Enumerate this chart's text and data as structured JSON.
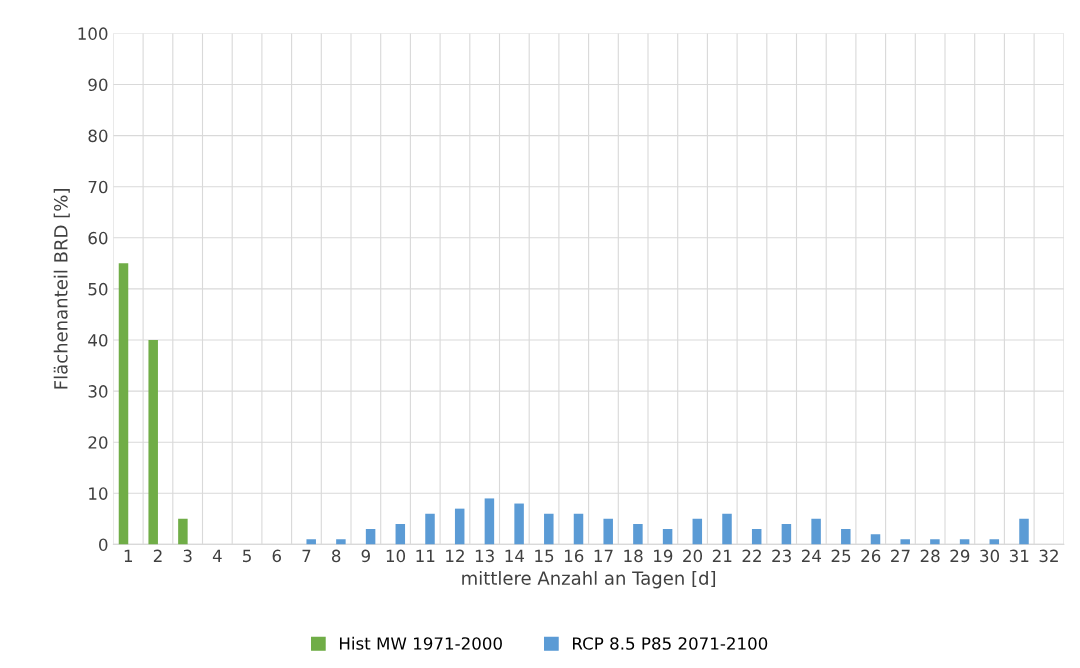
{
  "chart_data": {
    "type": "bar",
    "xlabel": "mittlere Anzahl an Tagen [d]",
    "ylabel": "Flächenanteil BRD [%]",
    "categories": [
      "1",
      "2",
      "3",
      "4",
      "5",
      "6",
      "7",
      "8",
      "9",
      "10",
      "11",
      "12",
      "13",
      "14",
      "15",
      "16",
      "17",
      "18",
      "19",
      "20",
      "21",
      "22",
      "23",
      "24",
      "25",
      "26",
      "27",
      "28",
      "29",
      "30",
      "31",
      "32"
    ],
    "series": [
      {
        "name": "Hist MW 1971-2000",
        "color": "#70ad47",
        "values": [
          55,
          40,
          5,
          null,
          null,
          null,
          null,
          null,
          null,
          null,
          null,
          null,
          null,
          null,
          null,
          null,
          null,
          null,
          null,
          null,
          null,
          null,
          null,
          null,
          null,
          null,
          null,
          null,
          null,
          null,
          null,
          null
        ]
      },
      {
        "name": "RCP 8.5 P85 2071-2100",
        "color": "#5b9bd5",
        "values": [
          null,
          null,
          null,
          null,
          null,
          null,
          1,
          1,
          3,
          4,
          6,
          7,
          9,
          8,
          6,
          6,
          5,
          4,
          3,
          5,
          6,
          3,
          4,
          5,
          3,
          2,
          1,
          1,
          1,
          1,
          5,
          null
        ]
      }
    ],
    "ylim": [
      0,
      100
    ],
    "yticks": [
      0,
      10,
      20,
      30,
      40,
      50,
      60,
      70,
      80,
      90,
      100
    ],
    "grid": true,
    "legend": "bottom"
  }
}
